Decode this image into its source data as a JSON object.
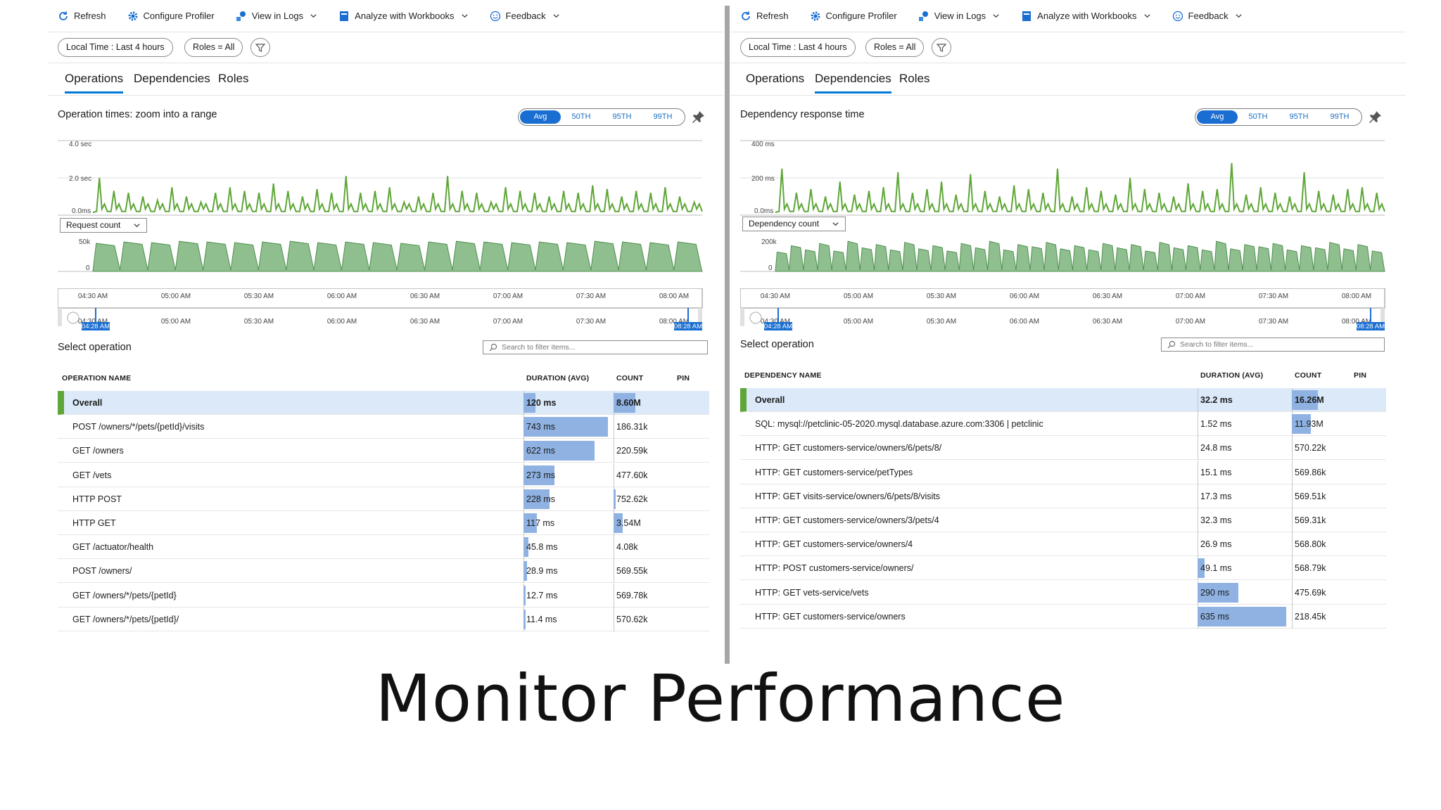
{
  "slide_title": "Monitor Performance",
  "left": {
    "toolbar": {
      "refresh": "Refresh",
      "configure": "Configure Profiler",
      "logs": "View in Logs",
      "workbooks": "Analyze with Workbooks",
      "feedback": "Feedback"
    },
    "filters": {
      "time": "Local Time : Last 4 hours",
      "roles": "Roles = All"
    },
    "tabs": [
      "Operations",
      "Dependencies",
      "Roles"
    ],
    "active_tab": "Operations",
    "chart_title": "Operation times: zoom into a range",
    "segments": [
      "Avg",
      "50TH",
      "95TH",
      "99TH"
    ],
    "chart_data": {
      "type": "line",
      "series": [
        {
          "name": "Operation times",
          "color": "#5ea637",
          "peaks": [
            2.0,
            1.3,
            1.2,
            1.0,
            0.8,
            1.5,
            1.0,
            0.7,
            1.2,
            1.5,
            1.3,
            1.2,
            1.7,
            1.3,
            1.0,
            1.4,
            1.2,
            2.1,
            1.2,
            1.3,
            1.5,
            0.7,
            1.0,
            1.2,
            2.1,
            1.3,
            1.2,
            0.7,
            1.5,
            1.3,
            1.2,
            1.0,
            1.3,
            1.2,
            1.6,
            1.4,
            1.0,
            1.3,
            1.2,
            1.5,
            1.0,
            0.7
          ]
        }
      ],
      "y_ticks": [
        "4.0 sec",
        "2.0 sec",
        "0.0ms"
      ],
      "ylim": [
        0,
        4
      ],
      "sub_metric": "Request count",
      "sub_y_ticks": [
        "50k",
        "0"
      ],
      "sub_values": [
        41,
        43,
        42,
        44,
        43,
        42,
        43,
        44,
        42,
        43,
        42,
        41,
        43,
        44,
        43,
        42,
        43,
        42,
        44,
        43,
        42,
        43
      ],
      "x_ticks": [
        "04:30 AM",
        "05:00 AM",
        "05:30 AM",
        "06:00 AM",
        "06:30 AM",
        "07:00 AM",
        "07:30 AM",
        "08:00 AM"
      ],
      "range_start": "04:28 AM",
      "range_end": "08:28 AM"
    },
    "select_title": "Select operation",
    "search_placeholder": "Search to filter items...",
    "columns": {
      "name": "OPERATION NAME",
      "duration": "DURATION (AVG)",
      "count": "COUNT",
      "pin": "PIN"
    },
    "rows": [
      {
        "name": "Overall",
        "duration": "120 ms",
        "count": "8.60M",
        "dur_frac": 0.14,
        "cnt_frac": 0.51
      },
      {
        "name": "POST /owners/*/pets/{petId}/visits",
        "duration": "743 ms",
        "count": "186.31k",
        "dur_frac": 1.0,
        "cnt_frac": 0
      },
      {
        "name": "GET /owners",
        "duration": "622 ms",
        "count": "220.59k",
        "dur_frac": 0.84,
        "cnt_frac": 0
      },
      {
        "name": "GET /vets",
        "duration": "273 ms",
        "count": "477.60k",
        "dur_frac": 0.37,
        "cnt_frac": 0
      },
      {
        "name": "HTTP POST",
        "duration": "228 ms",
        "count": "752.62k",
        "dur_frac": 0.31,
        "cnt_frac": 0.04
      },
      {
        "name": "HTTP GET",
        "duration": "117 ms",
        "count": "3.54M",
        "dur_frac": 0.16,
        "cnt_frac": 0.21
      },
      {
        "name": "GET /actuator/health",
        "duration": "45.8 ms",
        "count": "4.08k",
        "dur_frac": 0.06,
        "cnt_frac": 0
      },
      {
        "name": "POST /owners/",
        "duration": "28.9 ms",
        "count": "569.55k",
        "dur_frac": 0.04,
        "cnt_frac": 0
      },
      {
        "name": "GET /owners/*/pets/{petId}",
        "duration": "12.7 ms",
        "count": "569.78k",
        "dur_frac": 0.02,
        "cnt_frac": 0
      },
      {
        "name": "GET /owners/*/pets/{petId}/",
        "duration": "11.4 ms",
        "count": "570.62k",
        "dur_frac": 0.015,
        "cnt_frac": 0
      }
    ]
  },
  "right": {
    "toolbar": {
      "refresh": "Refresh",
      "configure": "Configure Profiler",
      "logs": "View in Logs",
      "workbooks": "Analyze with Workbooks",
      "feedback": "Feedback"
    },
    "filters": {
      "time": "Local Time : Last 4 hours",
      "roles": "Roles = All"
    },
    "tabs": [
      "Operations",
      "Dependencies",
      "Roles"
    ],
    "active_tab": "Dependencies",
    "chart_title": "Dependency response time",
    "segments": [
      "Avg",
      "50TH",
      "95TH",
      "99TH"
    ],
    "chart_data": {
      "type": "line",
      "series": [
        {
          "name": "Dependency response time",
          "color": "#5ea637",
          "peaks": [
            250,
            120,
            140,
            100,
            180,
            110,
            130,
            150,
            230,
            120,
            140,
            180,
            110,
            220,
            130,
            100,
            160,
            140,
            120,
            250,
            100,
            150,
            130,
            110,
            200,
            140,
            120,
            100,
            170,
            130,
            140,
            280,
            110,
            150,
            120,
            100,
            230,
            130,
            110,
            140,
            150,
            120
          ]
        }
      ],
      "y_ticks": [
        "400 ms",
        "200 ms",
        "0.0ms"
      ],
      "ylim": [
        0,
        400
      ],
      "sub_metric": "Dependency count",
      "sub_y_ticks": [
        "200k",
        "0"
      ],
      "sub_values": [
        90,
        120,
        100,
        130,
        95,
        140,
        110,
        125,
        100,
        135,
        105,
        120,
        95,
        130,
        110,
        140,
        100,
        125,
        115,
        135,
        105,
        120,
        100,
        130,
        110,
        125,
        95,
        135,
        110,
        120,
        100,
        140,
        105,
        125,
        115,
        130,
        100,
        120,
        110,
        135,
        105,
        125,
        95
      ],
      "x_ticks": [
        "04:30 AM",
        "05:00 AM",
        "05:30 AM",
        "06:00 AM",
        "06:30 AM",
        "07:00 AM",
        "07:30 AM",
        "08:00 AM"
      ],
      "range_start": "04:28 AM",
      "range_end": "08:28 AM"
    },
    "select_title": "Select operation",
    "search_placeholder": "Search to filter items...",
    "columns": {
      "name": "DEPENDENCY NAME",
      "duration": "DURATION (AVG)",
      "count": "COUNT",
      "pin": "PIN"
    },
    "rows": [
      {
        "name": "Overall",
        "duration": "32.2 ms",
        "count": "16.26M",
        "dur_frac": 0,
        "cnt_frac": 0.64
      },
      {
        "name": "SQL: mysql://petclinic-05-2020.mysql.database.azure.com:3306 | petclinic",
        "duration": "1.52 ms",
        "count": "11.93M",
        "dur_frac": 0,
        "cnt_frac": 0.47
      },
      {
        "name": "HTTP: GET customers-service/owners/6/pets/8/",
        "duration": "24.8 ms",
        "count": "570.22k",
        "dur_frac": 0,
        "cnt_frac": 0
      },
      {
        "name": "HTTP: GET customers-service/petTypes",
        "duration": "15.1 ms",
        "count": "569.86k",
        "dur_frac": 0,
        "cnt_frac": 0
      },
      {
        "name": "HTTP: GET visits-service/owners/6/pets/8/visits",
        "duration": "17.3 ms",
        "count": "569.51k",
        "dur_frac": 0,
        "cnt_frac": 0
      },
      {
        "name": "HTTP: GET customers-service/owners/3/pets/4",
        "duration": "32.3 ms",
        "count": "569.31k",
        "dur_frac": 0,
        "cnt_frac": 0
      },
      {
        "name": "HTTP: GET customers-service/owners/4",
        "duration": "26.9 ms",
        "count": "568.80k",
        "dur_frac": 0,
        "cnt_frac": 0
      },
      {
        "name": "HTTP: POST customers-service/owners/",
        "duration": "49.1 ms",
        "count": "568.79k",
        "dur_frac": 0.08,
        "cnt_frac": 0
      },
      {
        "name": "HTTP: GET vets-service/vets",
        "duration": "290 ms",
        "count": "475.69k",
        "dur_frac": 0.46,
        "cnt_frac": 0
      },
      {
        "name": "HTTP: GET customers-service/owners",
        "duration": "635 ms",
        "count": "218.45k",
        "dur_frac": 1.0,
        "cnt_frac": 0
      }
    ]
  },
  "colors": {
    "accent": "#0078d4",
    "series_green": "#5ea637",
    "area_fill": "#8fbf8f",
    "bar_blue": "#8fb2e2",
    "overall_bg": "#dbe9f9"
  },
  "icons": {
    "refresh": "refresh-icon",
    "configure": "gear-icon",
    "logs": "logs-icon",
    "workbooks": "workbook-icon",
    "feedback": "smiley-icon",
    "pin": "pin-icon",
    "filter": "filter-icon",
    "search": "search-icon"
  }
}
